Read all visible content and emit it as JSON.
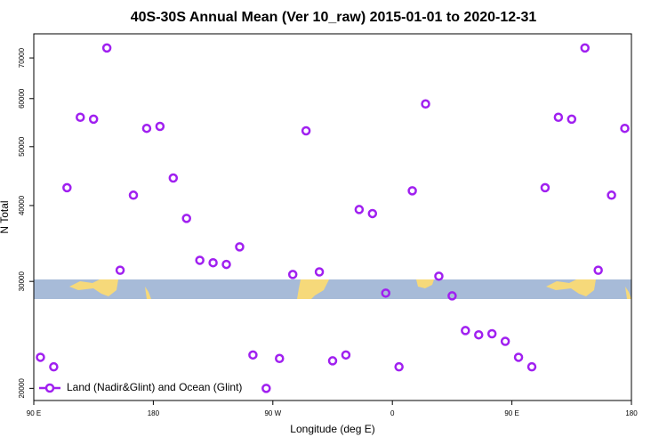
{
  "chart_data": {
    "type": "scatter",
    "title": "40S-30S Annual Mean (Ver 10_raw)   2015-01-01 to 2020-12-31",
    "x_label": "Longitude (deg E)",
    "y_label": "N Total",
    "log_y": true,
    "legend_position": "lower left",
    "xlim": [
      90,
      540
    ],
    "ylim": [
      19100,
      76700
    ],
    "xticks": [
      {
        "value": 90,
        "label": "90 E"
      },
      {
        "value": 180,
        "label": "180"
      },
      {
        "value": 270,
        "label": "90 W"
      },
      {
        "value": 360,
        "label": "0"
      },
      {
        "value": 450,
        "label": "90 E"
      },
      {
        "value": 540,
        "label": "180"
      }
    ],
    "yticks": [
      20000,
      30000,
      40000,
      50000,
      60000,
      70000
    ],
    "series": [
      {
        "name": "Land (Nadir&Glint) and Ocean (Glint)",
        "color": "#a020f0",
        "x": [
          95,
          105,
          115,
          125,
          135,
          145,
          155,
          165,
          175,
          185,
          195,
          205,
          215,
          225,
          235,
          245,
          255,
          265,
          275,
          285,
          295,
          305,
          315,
          325,
          335,
          345,
          355,
          365,
          375,
          385,
          395,
          405,
          415,
          425,
          435,
          445,
          455,
          465,
          475,
          485,
          495,
          505,
          515,
          525,
          535
        ],
        "values": [
          22500,
          21700,
          42800,
          55900,
          55500,
          72700,
          31300,
          41600,
          53600,
          54000,
          44400,
          38100,
          32500,
          32200,
          32000,
          34200,
          22700,
          20000,
          22400,
          30800,
          53100,
          31100,
          22200,
          22700,
          39400,
          38800,
          28700,
          21700,
          42300,
          58800,
          30600,
          28400,
          24900,
          24500,
          24600,
          23900,
          22500,
          21700,
          42800,
          55900,
          55500,
          72700,
          31300,
          41600,
          53600
        ]
      }
    ]
  }
}
